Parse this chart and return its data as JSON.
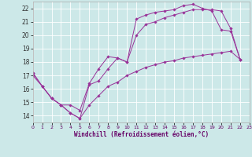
{
  "xlabel": "Windchill (Refroidissement éolien,°C)",
  "bg_color": "#cce8e8",
  "grid_color": "#ffffff",
  "line_color": "#993399",
  "xmin": 0,
  "xmax": 23,
  "ymin": 13.5,
  "ymax": 22.5,
  "yticks": [
    14,
    15,
    16,
    17,
    18,
    19,
    20,
    21,
    22
  ],
  "xticks": [
    0,
    1,
    2,
    3,
    4,
    5,
    6,
    7,
    8,
    9,
    10,
    11,
    12,
    13,
    14,
    15,
    16,
    17,
    18,
    19,
    20,
    21,
    22,
    23
  ],
  "series": [
    {
      "x": [
        0,
        1,
        2,
        3,
        4,
        5,
        6,
        7,
        8,
        9,
        10,
        11,
        12,
        13,
        14,
        15,
        16,
        17,
        18,
        19,
        20,
        21,
        22
      ],
      "y": [
        17.2,
        16.2,
        15.3,
        14.8,
        14.2,
        13.8,
        16.3,
        16.6,
        17.5,
        18.3,
        18.0,
        21.2,
        21.5,
        21.7,
        21.8,
        21.9,
        22.2,
        22.3,
        22.0,
        21.8,
        20.4,
        20.3,
        18.2
      ]
    },
    {
      "x": [
        0,
        1,
        2,
        3,
        4,
        5,
        6,
        7,
        8,
        9,
        10,
        11,
        12,
        13,
        14,
        15,
        16,
        17,
        18,
        19,
        20,
        21,
        22
      ],
      "y": [
        17.2,
        16.2,
        15.3,
        14.8,
        14.8,
        14.4,
        16.4,
        17.5,
        18.4,
        18.3,
        18.0,
        20.0,
        20.8,
        21.0,
        21.3,
        21.5,
        21.7,
        21.9,
        21.9,
        21.9,
        21.8,
        20.5,
        18.2
      ]
    },
    {
      "x": [
        0,
        1,
        2,
        3,
        4,
        5,
        6,
        7,
        8,
        9,
        10,
        11,
        12,
        13,
        14,
        15,
        16,
        17,
        18,
        19,
        20,
        21,
        22
      ],
      "y": [
        17.0,
        16.2,
        15.3,
        14.8,
        14.2,
        13.8,
        14.8,
        15.5,
        16.2,
        16.5,
        17.0,
        17.3,
        17.6,
        17.8,
        18.0,
        18.1,
        18.3,
        18.4,
        18.5,
        18.6,
        18.7,
        18.8,
        18.2
      ]
    }
  ]
}
